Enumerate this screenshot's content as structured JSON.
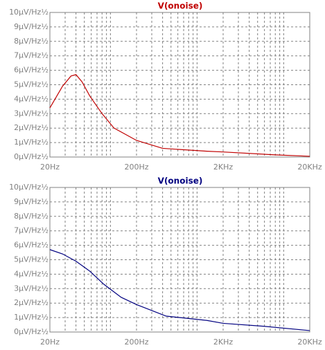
{
  "chart_data": [
    {
      "type": "line",
      "title": "V(onoise)",
      "title_color": "#c00000",
      "x": [
        20,
        28,
        35,
        40,
        47,
        58,
        80,
        110,
        200,
        400,
        1300,
        2000,
        8000,
        20000
      ],
      "series": [
        {
          "name": "V(onoise)",
          "color": "#c00000",
          "values": [
            3.4,
            4.9,
            5.6,
            5.7,
            5.2,
            4.2,
            3.0,
            2.0,
            1.15,
            0.6,
            0.4,
            0.35,
            0.15,
            0.05
          ]
        }
      ],
      "xlim": [
        20,
        20000
      ],
      "log_x": true,
      "xticks": [
        {
          "value": 20,
          "label": "20Hz"
        },
        {
          "value": 200,
          "label": "200Hz"
        },
        {
          "value": 2000,
          "label": "2KHz"
        },
        {
          "value": 20000,
          "label": "20KHz"
        }
      ],
      "xminor": [
        30,
        40,
        50,
        60,
        70,
        80,
        90,
        100,
        300,
        400,
        500,
        600,
        700,
        800,
        900,
        1000,
        3000,
        4000,
        5000,
        6000,
        7000,
        8000,
        9000,
        10000
      ],
      "ylim": [
        0,
        10
      ],
      "yticks": [
        {
          "value": 0,
          "label": "0µV/Hz½"
        },
        {
          "value": 1,
          "label": "1µV/Hz½"
        },
        {
          "value": 2,
          "label": "2µV/Hz½"
        },
        {
          "value": 3,
          "label": "3µV/Hz½"
        },
        {
          "value": 4,
          "label": "4µV/Hz½"
        },
        {
          "value": 5,
          "label": "5µV/Hz½"
        },
        {
          "value": 6,
          "label": "6µV/Hz½"
        },
        {
          "value": 7,
          "label": "7µV/Hz½"
        },
        {
          "value": 8,
          "label": "8µV/Hz½"
        },
        {
          "value": 9,
          "label": "9µV/Hz½"
        },
        {
          "value": 10,
          "label": "10µV/Hz½"
        }
      ],
      "grid": true
    },
    {
      "type": "line",
      "title": "V(onoise)",
      "title_color": "#000080",
      "x": [
        20,
        28,
        40,
        58,
        84,
        133,
        200,
        440,
        1300,
        2000,
        5800,
        20000
      ],
      "series": [
        {
          "name": "V(onoise)",
          "color": "#000080",
          "values": [
            5.7,
            5.4,
            4.9,
            4.2,
            3.3,
            2.4,
            1.9,
            1.1,
            0.8,
            0.6,
            0.4,
            0.1
          ]
        }
      ],
      "xlim": [
        20,
        20000
      ],
      "log_x": true,
      "xticks": [
        {
          "value": 20,
          "label": "20Hz"
        },
        {
          "value": 200,
          "label": "200Hz"
        },
        {
          "value": 2000,
          "label": "2KHz"
        },
        {
          "value": 20000,
          "label": "20KHz"
        }
      ],
      "xminor": [
        30,
        40,
        50,
        60,
        70,
        80,
        90,
        100,
        300,
        400,
        500,
        600,
        700,
        800,
        900,
        1000,
        3000,
        4000,
        5000,
        6000,
        7000,
        8000,
        9000,
        10000
      ],
      "ylim": [
        0,
        10
      ],
      "yticks": [
        {
          "value": 0,
          "label": "0µV/Hz½"
        },
        {
          "value": 1,
          "label": "1µV/Hz½"
        },
        {
          "value": 2,
          "label": "2µV/Hz½"
        },
        {
          "value": 3,
          "label": "3µV/Hz½"
        },
        {
          "value": 4,
          "label": "4µV/Hz½"
        },
        {
          "value": 5,
          "label": "5µV/Hz½"
        },
        {
          "value": 6,
          "label": "6µV/Hz½"
        },
        {
          "value": 7,
          "label": "7µV/Hz½"
        },
        {
          "value": 8,
          "label": "8µV/Hz½"
        },
        {
          "value": 9,
          "label": "9µV/Hz½"
        },
        {
          "value": 10,
          "label": "10µV/Hz½"
        }
      ],
      "grid": true
    }
  ]
}
